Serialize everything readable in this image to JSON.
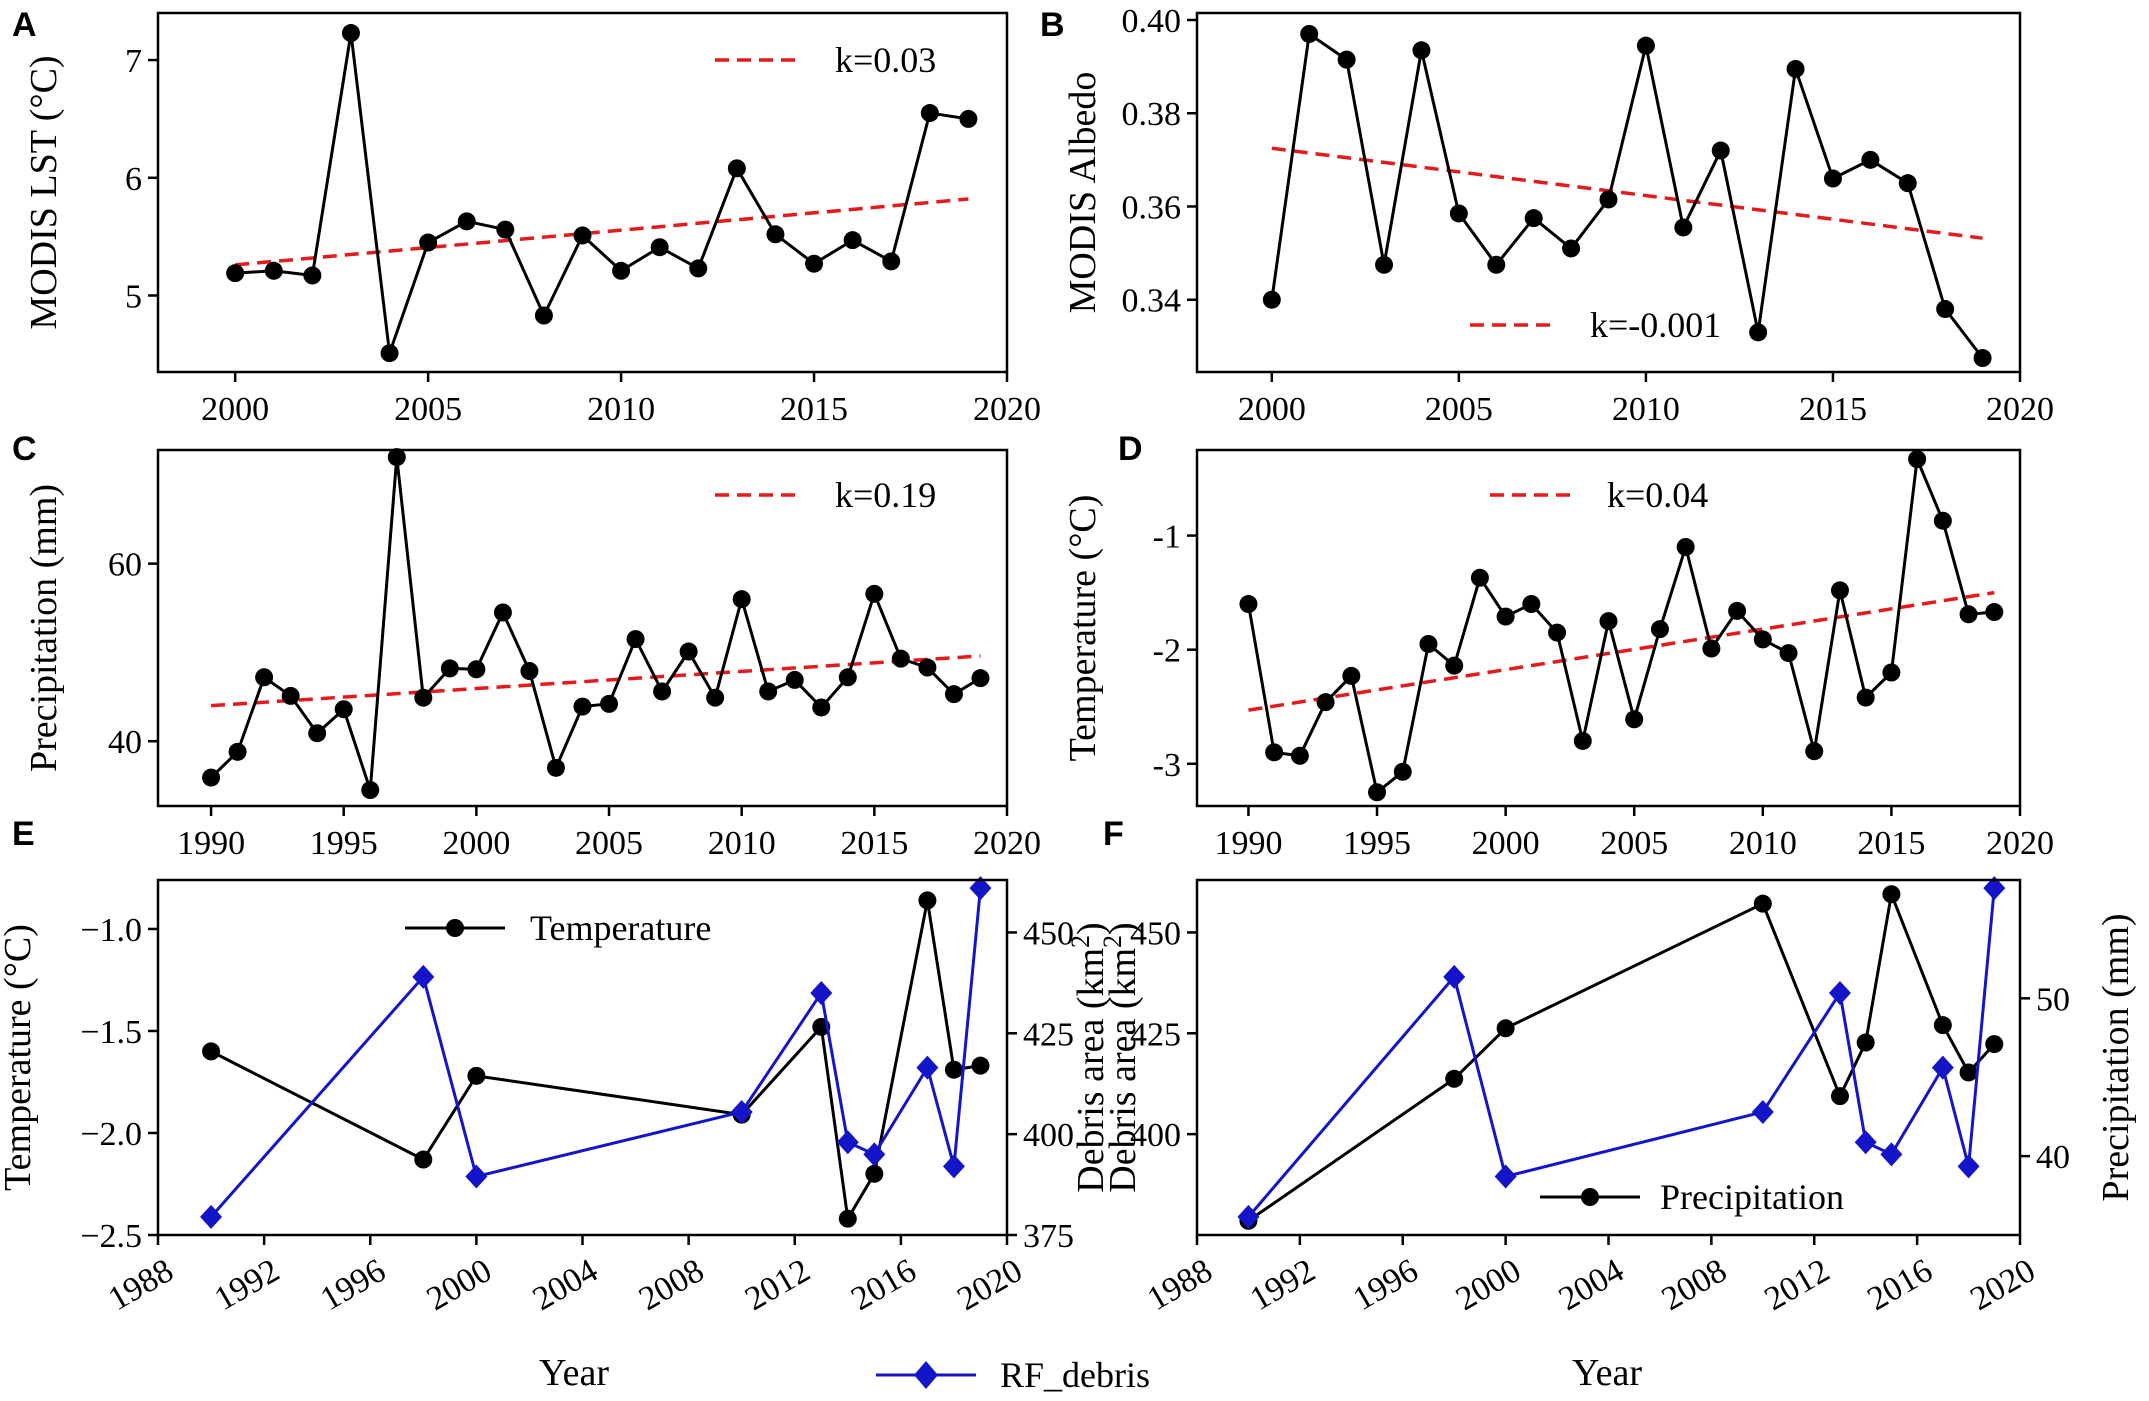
{
  "colors": {
    "series": "#000000",
    "trend": "#e41a1c",
    "debris": "#1414c8"
  },
  "xlabel": "Year",
  "debris_legend": "RF_debris",
  "chart_data": [
    {
      "id": "A",
      "letter": "A",
      "type": "line",
      "ylabel": "MODIS LST (°C)",
      "xlim": [
        1998,
        2020
      ],
      "ylim": [
        4.35,
        7.4
      ],
      "xticks": [
        2000,
        2005,
        2010,
        2015,
        2020
      ],
      "yticks": [
        5,
        6,
        7
      ],
      "x": [
        2000,
        2001,
        2002,
        2003,
        2004,
        2005,
        2006,
        2007,
        2008,
        2009,
        2010,
        2011,
        2012,
        2013,
        2014,
        2015,
        2016,
        2017,
        2018,
        2019
      ],
      "values": [
        5.19,
        5.21,
        5.17,
        7.23,
        4.51,
        5.45,
        5.63,
        5.56,
        4.83,
        5.51,
        5.21,
        5.41,
        5.23,
        6.08,
        5.52,
        5.27,
        5.47,
        5.29,
        6.55,
        6.5
      ],
      "trend": {
        "x": [
          2000,
          2019
        ],
        "y": [
          5.26,
          5.82
        ],
        "label": "k=0.03"
      }
    },
    {
      "id": "B",
      "letter": "B",
      "type": "line",
      "ylabel": "MODIS Albedo",
      "xlim": [
        1998,
        2020
      ],
      "ylim": [
        0.3245,
        0.4015
      ],
      "xticks": [
        2000,
        2005,
        2010,
        2015,
        2020
      ],
      "yticks": [
        0.34,
        0.36,
        0.38,
        0.4
      ],
      "ytick_labels": [
        "0.34",
        "0.36",
        "0.38",
        "0.40"
      ],
      "x": [
        2000,
        2001,
        2002,
        2003,
        2004,
        2005,
        2006,
        2007,
        2008,
        2009,
        2010,
        2011,
        2012,
        2013,
        2014,
        2015,
        2016,
        2017,
        2018,
        2019
      ],
      "values": [
        0.34,
        0.397,
        0.3915,
        0.3475,
        0.3935,
        0.3585,
        0.3475,
        0.3575,
        0.351,
        0.3615,
        0.3945,
        0.3555,
        0.372,
        0.333,
        0.3895,
        0.366,
        0.37,
        0.365,
        0.338,
        0.3275
      ],
      "trend": {
        "x": [
          2000,
          2019
        ],
        "y": [
          0.3725,
          0.3532
        ],
        "label": "k=-0.001"
      }
    },
    {
      "id": "C",
      "letter": "C",
      "type": "line",
      "ylabel": "Precipitation (mm)",
      "xlim": [
        1988,
        2020
      ],
      "ylim": [
        32.7,
        72.8
      ],
      "xticks": [
        1990,
        1995,
        2000,
        2005,
        2010,
        2015,
        2020
      ],
      "yticks": [
        40,
        60
      ],
      "x": [
        1990,
        1991,
        1992,
        1993,
        1994,
        1995,
        1996,
        1997,
        1998,
        1999,
        2000,
        2001,
        2002,
        2003,
        2004,
        2005,
        2006,
        2007,
        2008,
        2009,
        2010,
        2011,
        2012,
        2013,
        2014,
        2015,
        2016,
        2017,
        2018,
        2019
      ],
      "values": [
        35.9,
        38.8,
        47.2,
        45.1,
        40.9,
        43.6,
        34.5,
        72.0,
        44.9,
        48.2,
        48.1,
        54.5,
        47.9,
        37.0,
        43.9,
        44.2,
        51.5,
        45.6,
        50.1,
        44.9,
        56.0,
        45.6,
        46.9,
        43.8,
        47.2,
        56.6,
        49.3,
        48.3,
        45.3,
        47.1
      ],
      "trend": {
        "x": [
          1990,
          2019
        ],
        "y": [
          44.0,
          49.6
        ],
        "label": "k=0.19"
      }
    },
    {
      "id": "D",
      "letter": "D",
      "type": "line",
      "ylabel": "Temperature (°C)",
      "xlim": [
        1988,
        2020
      ],
      "ylim": [
        -3.37,
        -0.25
      ],
      "xticks": [
        1990,
        1995,
        2000,
        2005,
        2010,
        2015,
        2020
      ],
      "yticks": [
        -3,
        -2,
        -1
      ],
      "x": [
        1990,
        1991,
        1992,
        1993,
        1994,
        1995,
        1996,
        1997,
        1998,
        1999,
        2000,
        2001,
        2002,
        2003,
        2004,
        2005,
        2006,
        2007,
        2008,
        2009,
        2010,
        2011,
        2012,
        2013,
        2014,
        2015,
        2016,
        2017,
        2018,
        2019
      ],
      "values": [
        -1.6,
        -2.9,
        -2.93,
        -2.46,
        -2.23,
        -3.25,
        -3.07,
        -1.95,
        -2.14,
        -1.37,
        -1.71,
        -1.6,
        -1.85,
        -2.8,
        -1.75,
        -2.61,
        -1.82,
        -1.1,
        -1.99,
        -1.66,
        -1.91,
        -2.03,
        -2.89,
        -1.48,
        -2.42,
        -2.2,
        -0.33,
        -0.87,
        -1.69,
        -1.67
      ],
      "trend": {
        "x": [
          1990,
          2019
        ],
        "y": [
          -2.53,
          -1.5
        ],
        "label": "k=0.04"
      }
    },
    {
      "id": "E",
      "letter": "E",
      "type": "line-dual-axis",
      "ylabel": "Temperature (°C)",
      "ylabel_right": "Debris area (km2)",
      "xlim": [
        1988,
        2020
      ],
      "ylim": [
        -2.5,
        -0.76
      ],
      "ylim_right": [
        375,
        463
      ],
      "xticks": [
        1988,
        1992,
        1996,
        2000,
        2004,
        2008,
        2012,
        2016,
        2020
      ],
      "yticks": [
        -2.5,
        -2.0,
        -1.5,
        -1.0
      ],
      "ytick_labels": [
        "−2.5",
        "−2.0",
        "−1.5",
        "−1.0"
      ],
      "yticks_right": [
        375,
        400,
        425,
        450
      ],
      "series": [
        {
          "name": "Temperature",
          "axis": "left",
          "color": "#000000",
          "marker": "circle",
          "x": [
            1990,
            1998,
            2000,
            2010,
            2013,
            2014,
            2015,
            2017,
            2018,
            2019
          ],
          "values": [
            -1.6,
            -2.13,
            -1.72,
            -1.91,
            -1.48,
            -2.42,
            -2.2,
            -0.86,
            -1.69,
            -1.67
          ]
        },
        {
          "name": "RF_debris",
          "axis": "right",
          "color": "#1414c8",
          "marker": "diamond",
          "x": [
            1990,
            1998,
            2000,
            2010,
            2013,
            2014,
            2015,
            2017,
            2018,
            2019
          ],
          "values": [
            379.5,
            439,
            389.5,
            405.5,
            435,
            398,
            395,
            416.5,
            392,
            461
          ]
        }
      ],
      "legend": {
        "label": "Temperature",
        "placement": "top-center"
      }
    },
    {
      "id": "F",
      "letter": "F",
      "type": "line-dual-axis",
      "ylabel": "Debris area (km2)",
      "ylabel_right": "Precipitation (mm)",
      "xlim": [
        1988,
        2020
      ],
      "ylim": [
        375,
        463
      ],
      "ylim_right": [
        35.0,
        57.5
      ],
      "xticks": [
        1988,
        1992,
        1996,
        2000,
        2004,
        2008,
        2012,
        2016,
        2020
      ],
      "yticks": [
        400,
        425,
        450
      ],
      "yticks_right": [
        40,
        50
      ],
      "series": [
        {
          "name": "Precipitation",
          "axis": "right",
          "color": "#000000",
          "marker": "circle",
          "x": [
            1990,
            1998,
            2000,
            2010,
            2013,
            2014,
            2015,
            2017,
            2018,
            2019
          ],
          "values": [
            35.9,
            44.9,
            48.1,
            56.0,
            43.8,
            47.2,
            56.6,
            48.3,
            45.3,
            47.1
          ]
        },
        {
          "name": "RF_debris",
          "axis": "left",
          "color": "#1414c8",
          "marker": "diamond",
          "x": [
            1990,
            1998,
            2000,
            2010,
            2013,
            2014,
            2015,
            2017,
            2018,
            2019
          ],
          "values": [
            379.5,
            439,
            389.5,
            405.5,
            435,
            398,
            395,
            416.5,
            392,
            461
          ]
        }
      ],
      "legend": {
        "label": "Precipitation",
        "placement": "bottom-center"
      }
    }
  ]
}
